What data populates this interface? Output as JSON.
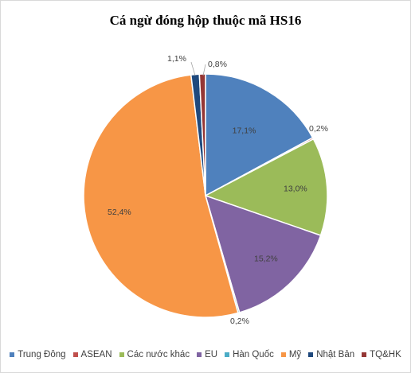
{
  "chart_data": {
    "type": "pie",
    "title": "Cá ngừ đóng hộp thuộc mã HS16",
    "categories": [
      "Trung Đông",
      "ASEAN",
      "Các nước khác",
      "EU",
      "Hàn Quốc",
      "Mỹ",
      "Nhật Bản",
      "TQ&HK"
    ],
    "values": [
      17.1,
      0.2,
      13.0,
      15.2,
      0.2,
      52.4,
      1.1,
      0.8
    ],
    "data_labels": [
      "17,1%",
      "0,2%",
      "13,0%",
      "15,2%",
      "0,2%",
      "52,4%",
      "1,1%",
      "0,8%"
    ],
    "colors": [
      "#4f81bd",
      "#c0504d",
      "#9bbb59",
      "#8064a2",
      "#4bacc6",
      "#f79646",
      "#1f497d",
      "#953735"
    ],
    "legend_position": "bottom",
    "start_angle": "12 o'clock, clockwise"
  }
}
